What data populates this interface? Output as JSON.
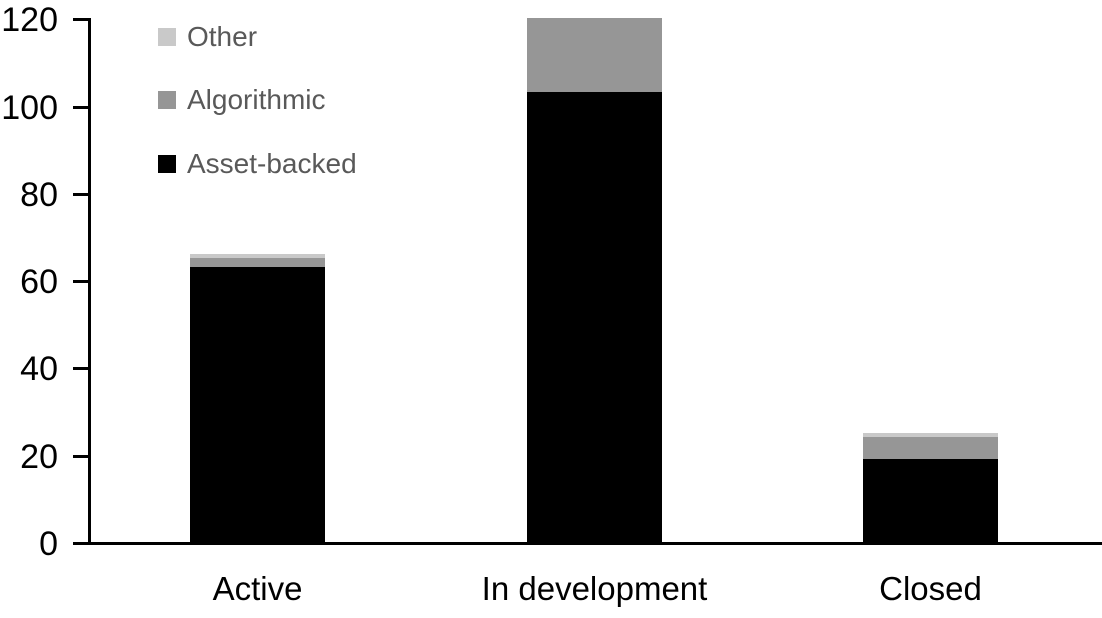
{
  "chart_data": {
    "type": "bar",
    "stacked": true,
    "title": "",
    "categories": [
      "Active",
      "In development",
      "Closed"
    ],
    "series": [
      {
        "name": "Asset-backed",
        "color": "#000000",
        "values": [
          63,
          103,
          19
        ]
      },
      {
        "name": "Algorithmic",
        "color": "#969696",
        "values": [
          2,
          17,
          5
        ]
      },
      {
        "name": "Other",
        "color": "#c9c9c9",
        "values": [
          1,
          0,
          1
        ]
      }
    ],
    "ylim": [
      0,
      120
    ],
    "yticks": [
      "0",
      "20",
      "40",
      "60",
      "80",
      "100",
      "120"
    ],
    "grid": false,
    "axis_color": "#000000",
    "background": "#ffffff",
    "legend": {
      "position": "top-left",
      "text_color": "#595959",
      "entries": [
        {
          "label": "Other",
          "color": "#c9c9c9"
        },
        {
          "label": "Algorithmic",
          "color": "#969696"
        },
        {
          "label": "Asset-backed",
          "color": "#000000"
        }
      ]
    }
  }
}
